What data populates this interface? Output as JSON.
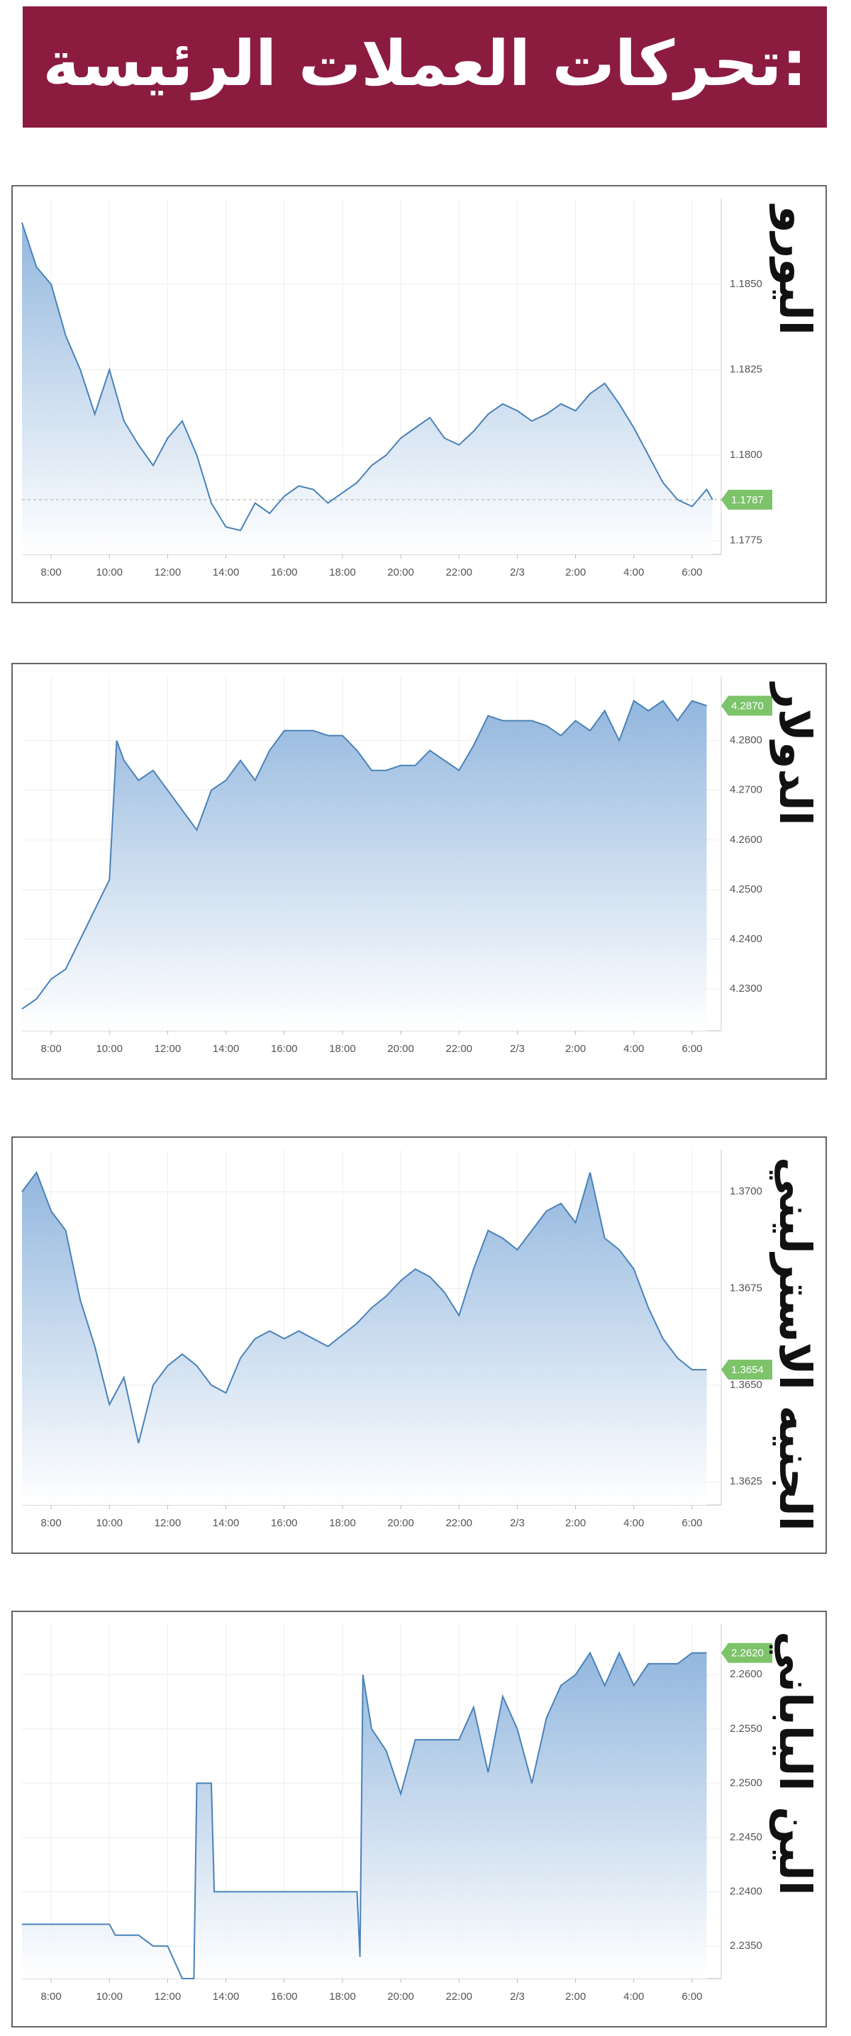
{
  "header": {
    "title": "تحركات العملات الرئيسة:"
  },
  "chart_data": [
    {
      "type": "area",
      "title": "اليورو",
      "color": "#4a82b8",
      "grid": true,
      "reference_line": true,
      "x": [
        7,
        7.5,
        8,
        8.5,
        9,
        9.5,
        10,
        10.5,
        11,
        11.5,
        12,
        12.5,
        13,
        13.5,
        14,
        14.5,
        15,
        15.5,
        16,
        16.5,
        17,
        17.5,
        18,
        18.5,
        19,
        19.5,
        20,
        20.5,
        21,
        21.5,
        22,
        22.5,
        23,
        23.5,
        24,
        24.5,
        25,
        25.5,
        26,
        26.5,
        27,
        27.5,
        28,
        28.5,
        29,
        29.5,
        30,
        30.5,
        30.7
      ],
      "values": [
        1.1868,
        1.1855,
        1.185,
        1.1835,
        1.1825,
        1.1812,
        1.1825,
        1.181,
        1.1803,
        1.1797,
        1.1805,
        1.181,
        1.18,
        1.1786,
        1.1779,
        1.1778,
        1.1786,
        1.1783,
        1.1788,
        1.1791,
        1.179,
        1.1786,
        1.1789,
        1.1792,
        1.1797,
        1.18,
        1.1805,
        1.1808,
        1.1811,
        1.1805,
        1.1803,
        1.1807,
        1.1812,
        1.1815,
        1.1813,
        1.181,
        1.1812,
        1.1815,
        1.1813,
        1.1818,
        1.1821,
        1.1815,
        1.1808,
        1.18,
        1.1792,
        1.1787,
        1.1785,
        1.179,
        1.1787
      ],
      "current": 1.1787,
      "xlim": [
        7,
        31
      ],
      "xticks": [
        {
          "value": 8,
          "label": "8:00"
        },
        {
          "value": 10,
          "label": "10:00"
        },
        {
          "value": 12,
          "label": "12:00"
        },
        {
          "value": 14,
          "label": "14:00"
        },
        {
          "value": 16,
          "label": "16:00"
        },
        {
          "value": 18,
          "label": "18:00"
        },
        {
          "value": 20,
          "label": "20:00"
        },
        {
          "value": 22,
          "label": "22:00"
        },
        {
          "value": 24,
          "label": "2/3"
        },
        {
          "value": 26,
          "label": "2:00"
        },
        {
          "value": 28,
          "label": "4:00"
        },
        {
          "value": 30,
          "label": "6:00"
        }
      ],
      "ylim": [
        1.1771,
        1.1873
      ],
      "yticks": [
        1.1775,
        {
          "value": 1.18,
          "label": "1.1800"
        },
        1.1825,
        {
          "value": 1.185,
          "label": "1.1850"
        }
      ]
    },
    {
      "type": "area",
      "title": "الدولار",
      "color": "#4a82b8",
      "grid": true,
      "reference_line": false,
      "x": [
        7,
        7.5,
        8,
        8.5,
        9,
        9.5,
        10,
        10.25,
        10.5,
        11,
        11.5,
        12,
        12.5,
        13,
        13.5,
        14,
        14.5,
        15,
        15.5,
        16,
        16.5,
        17,
        17.5,
        18,
        18.5,
        19,
        19.5,
        20,
        20.5,
        21,
        21.5,
        22,
        22.5,
        23,
        23.5,
        24,
        24.5,
        25,
        25.5,
        26,
        26.5,
        27,
        27.5,
        28,
        28.5,
        29,
        29.5,
        30,
        30.5
      ],
      "values": [
        4.226,
        4.228,
        4.232,
        4.234,
        4.24,
        4.246,
        4.252,
        4.28,
        4.276,
        4.272,
        4.274,
        4.27,
        4.266,
        4.262,
        4.27,
        4.272,
        4.276,
        4.272,
        4.278,
        4.282,
        4.282,
        4.282,
        4.281,
        4.281,
        4.278,
        4.274,
        4.274,
        4.275,
        4.275,
        4.278,
        4.276,
        4.274,
        4.279,
        4.285,
        4.284,
        4.284,
        4.284,
        4.283,
        4.281,
        4.284,
        4.282,
        4.286,
        4.28,
        4.288,
        4.286,
        4.288,
        4.284,
        4.288,
        4.287
      ],
      "current": {
        "value": 4.287,
        "label": "4.2870"
      },
      "xlim": [
        7,
        31
      ],
      "xticks": [
        {
          "value": 8,
          "label": "8:00"
        },
        {
          "value": 10,
          "label": "10:00"
        },
        {
          "value": 12,
          "label": "12:00"
        },
        {
          "value": 14,
          "label": "14:00"
        },
        {
          "value": 16,
          "label": "16:00"
        },
        {
          "value": 18,
          "label": "18:00"
        },
        {
          "value": 20,
          "label": "20:00"
        },
        {
          "value": 22,
          "label": "22:00"
        },
        {
          "value": 24,
          "label": "2/3"
        },
        {
          "value": 26,
          "label": "2:00"
        },
        {
          "value": 28,
          "label": "4:00"
        },
        {
          "value": 30,
          "label": "6:00"
        }
      ],
      "ylim": [
        4.2216,
        4.2915
      ],
      "yticks": [
        {
          "value": 4.23,
          "label": "4.2300"
        },
        {
          "value": 4.24,
          "label": "4.2400"
        },
        {
          "value": 4.25,
          "label": "4.2500"
        },
        {
          "value": 4.26,
          "label": "4.2600"
        },
        {
          "value": 4.27,
          "label": "4.2700"
        },
        {
          "value": 4.28,
          "label": "4.2800"
        }
      ]
    },
    {
      "type": "area",
      "title": "الجنيه الاسترليني",
      "color": "#4a82b8",
      "grid": true,
      "reference_line": false,
      "x": [
        7,
        7.5,
        8,
        8.5,
        9,
        9.5,
        10,
        10.5,
        11,
        11.5,
        12,
        12.5,
        13,
        13.5,
        14,
        14.5,
        15,
        15.5,
        16,
        16.5,
        17,
        17.5,
        18,
        18.5,
        19,
        19.5,
        20,
        20.5,
        21,
        21.5,
        22,
        22.5,
        23,
        23.5,
        24,
        24.5,
        25,
        25.5,
        26,
        26.5,
        27,
        27.5,
        28,
        28.5,
        29,
        29.5,
        30,
        30.5
      ],
      "values": [
        1.37,
        1.3705,
        1.3695,
        1.369,
        1.3672,
        1.366,
        1.3645,
        1.3652,
        1.3635,
        1.365,
        1.3655,
        1.3658,
        1.3655,
        1.365,
        1.3648,
        1.3657,
        1.3662,
        1.3664,
        1.3662,
        1.3664,
        1.3662,
        1.366,
        1.3663,
        1.3666,
        1.367,
        1.3673,
        1.3677,
        1.368,
        1.3678,
        1.3674,
        1.3668,
        1.368,
        1.369,
        1.3688,
        1.3685,
        1.369,
        1.3695,
        1.3697,
        1.3692,
        1.3705,
        1.3688,
        1.3685,
        1.368,
        1.367,
        1.3662,
        1.3657,
        1.3654,
        1.3654
      ],
      "current": 1.3654,
      "xlim": [
        7,
        31
      ],
      "xticks": [
        {
          "value": 8,
          "label": "8:00"
        },
        {
          "value": 10,
          "label": "10:00"
        },
        {
          "value": 12,
          "label": "12:00"
        },
        {
          "value": 14,
          "label": "14:00"
        },
        {
          "value": 16,
          "label": "16:00"
        },
        {
          "value": 18,
          "label": "18:00"
        },
        {
          "value": 20,
          "label": "20:00"
        },
        {
          "value": 22,
          "label": "22:00"
        },
        {
          "value": 24,
          "label": "2/3"
        },
        {
          "value": 26,
          "label": "2:00"
        },
        {
          "value": 28,
          "label": "4:00"
        },
        {
          "value": 30,
          "label": "6:00"
        }
      ],
      "ylim": [
        1.3619,
        1.3709
      ],
      "yticks": [
        1.3625,
        {
          "value": 1.365,
          "label": "1.3650"
        },
        1.3675,
        {
          "value": 1.37,
          "label": "1.3700"
        }
      ]
    },
    {
      "type": "area",
      "title": "الين الياباني",
      "color": "#4a82b8",
      "grid": true,
      "reference_line": false,
      "x": [
        7,
        7.5,
        8,
        9,
        10,
        10.2,
        11,
        11.5,
        12,
        12.5,
        12.9,
        13,
        13.5,
        13.6,
        15,
        17,
        18.5,
        18.6,
        18.7,
        19,
        19.5,
        20,
        20.5,
        21,
        22,
        22.5,
        23,
        23.5,
        24,
        24.5,
        25,
        25.5,
        26,
        26.5,
        27,
        27.5,
        28,
        28.5,
        29,
        29.5,
        30,
        30.5
      ],
      "values": [
        2.237,
        2.237,
        2.237,
        2.237,
        2.237,
        2.236,
        2.236,
        2.235,
        2.235,
        2.232,
        2.232,
        2.25,
        2.25,
        2.24,
        2.24,
        2.24,
        2.24,
        2.234,
        2.26,
        2.255,
        2.253,
        2.249,
        2.254,
        2.254,
        2.254,
        2.257,
        2.251,
        2.258,
        2.255,
        2.25,
        2.256,
        2.259,
        2.26,
        2.262,
        2.259,
        2.262,
        2.259,
        2.261,
        2.261,
        2.261,
        2.262,
        2.262
      ],
      "current": {
        "value": 2.262,
        "label": "2.2620"
      },
      "xlim": [
        7,
        31
      ],
      "xticks": [
        {
          "value": 8,
          "label": "8:00"
        },
        {
          "value": 10,
          "label": "10:00"
        },
        {
          "value": 12,
          "label": "12:00"
        },
        {
          "value": 14,
          "label": "14:00"
        },
        {
          "value": 16,
          "label": "16:00"
        },
        {
          "value": 18,
          "label": "18:00"
        },
        {
          "value": 20,
          "label": "20:00"
        },
        {
          "value": 22,
          "label": "22:00"
        },
        {
          "value": 24,
          "label": "2/3"
        },
        {
          "value": 26,
          "label": "2:00"
        },
        {
          "value": 28,
          "label": "4:00"
        },
        {
          "value": 30,
          "label": "6:00"
        }
      ],
      "ylim": [
        2.232,
        2.264
      ],
      "yticks": [
        {
          "value": 2.235,
          "label": "2.2350"
        },
        {
          "value": 2.24,
          "label": "2.2400"
        },
        {
          "value": 2.245,
          "label": "2.2450"
        },
        {
          "value": 2.25,
          "label": "2.2500"
        },
        {
          "value": 2.255,
          "label": "2.2550"
        },
        {
          "value": 2.26,
          "label": "2.2600"
        }
      ]
    }
  ]
}
